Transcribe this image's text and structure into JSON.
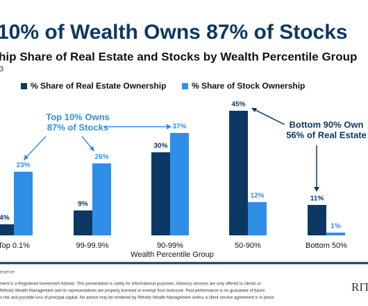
{
  "chart_data": {
    "type": "bar",
    "title": "10% of Wealth Owns 87% of Stocks",
    "subtitle": "hip Share of Real Estate and Stocks by Wealth Percentile Group",
    "date": "3",
    "x_label": "Wealth Percentile Group",
    "categories": [
      "Top 0.1%",
      "99-99.9%",
      "90-99%",
      "50-90%",
      "Bottom 50%"
    ],
    "series": [
      {
        "name": "% Share of Real Estate Ownership",
        "color": "#0c3864",
        "values": [
          4,
          9,
          30,
          45,
          11
        ],
        "value_labels": [
          "4%",
          "9%",
          "30%",
          "45%",
          "11%"
        ]
      },
      {
        "name": "% Share of Stock Ownership",
        "color": "#2f8fe6",
        "values": [
          23,
          26,
          37,
          12,
          1
        ],
        "value_labels": [
          "23%",
          "26%",
          "37%",
          "12%",
          "1%"
        ]
      }
    ],
    "annotations": [
      {
        "lines": [
          "Top 10% Owns",
          "87% of Stocks"
        ],
        "color": "#2f8fe6"
      },
      {
        "lines": [
          "Bottom 90% Own",
          "56% of Real Estate"
        ],
        "color": "#0c3864"
      }
    ]
  },
  "footer": {
    "lines": [
      "eserve",
      "ment is a Registered Investment Adviser. This presentation is solely for informational purposes. Advisory services are only offered to clients or",
      "Ritholtz Wealth Management and its representatives are properly licensed or exempt from licensure. Past performance is no guarantee of future",
      "s risk and possible loss of principal capital. No advice may be rendered by Ritholtz Wealth Management unless a client service agreement is in place."
    ],
    "logo": "RIT"
  }
}
